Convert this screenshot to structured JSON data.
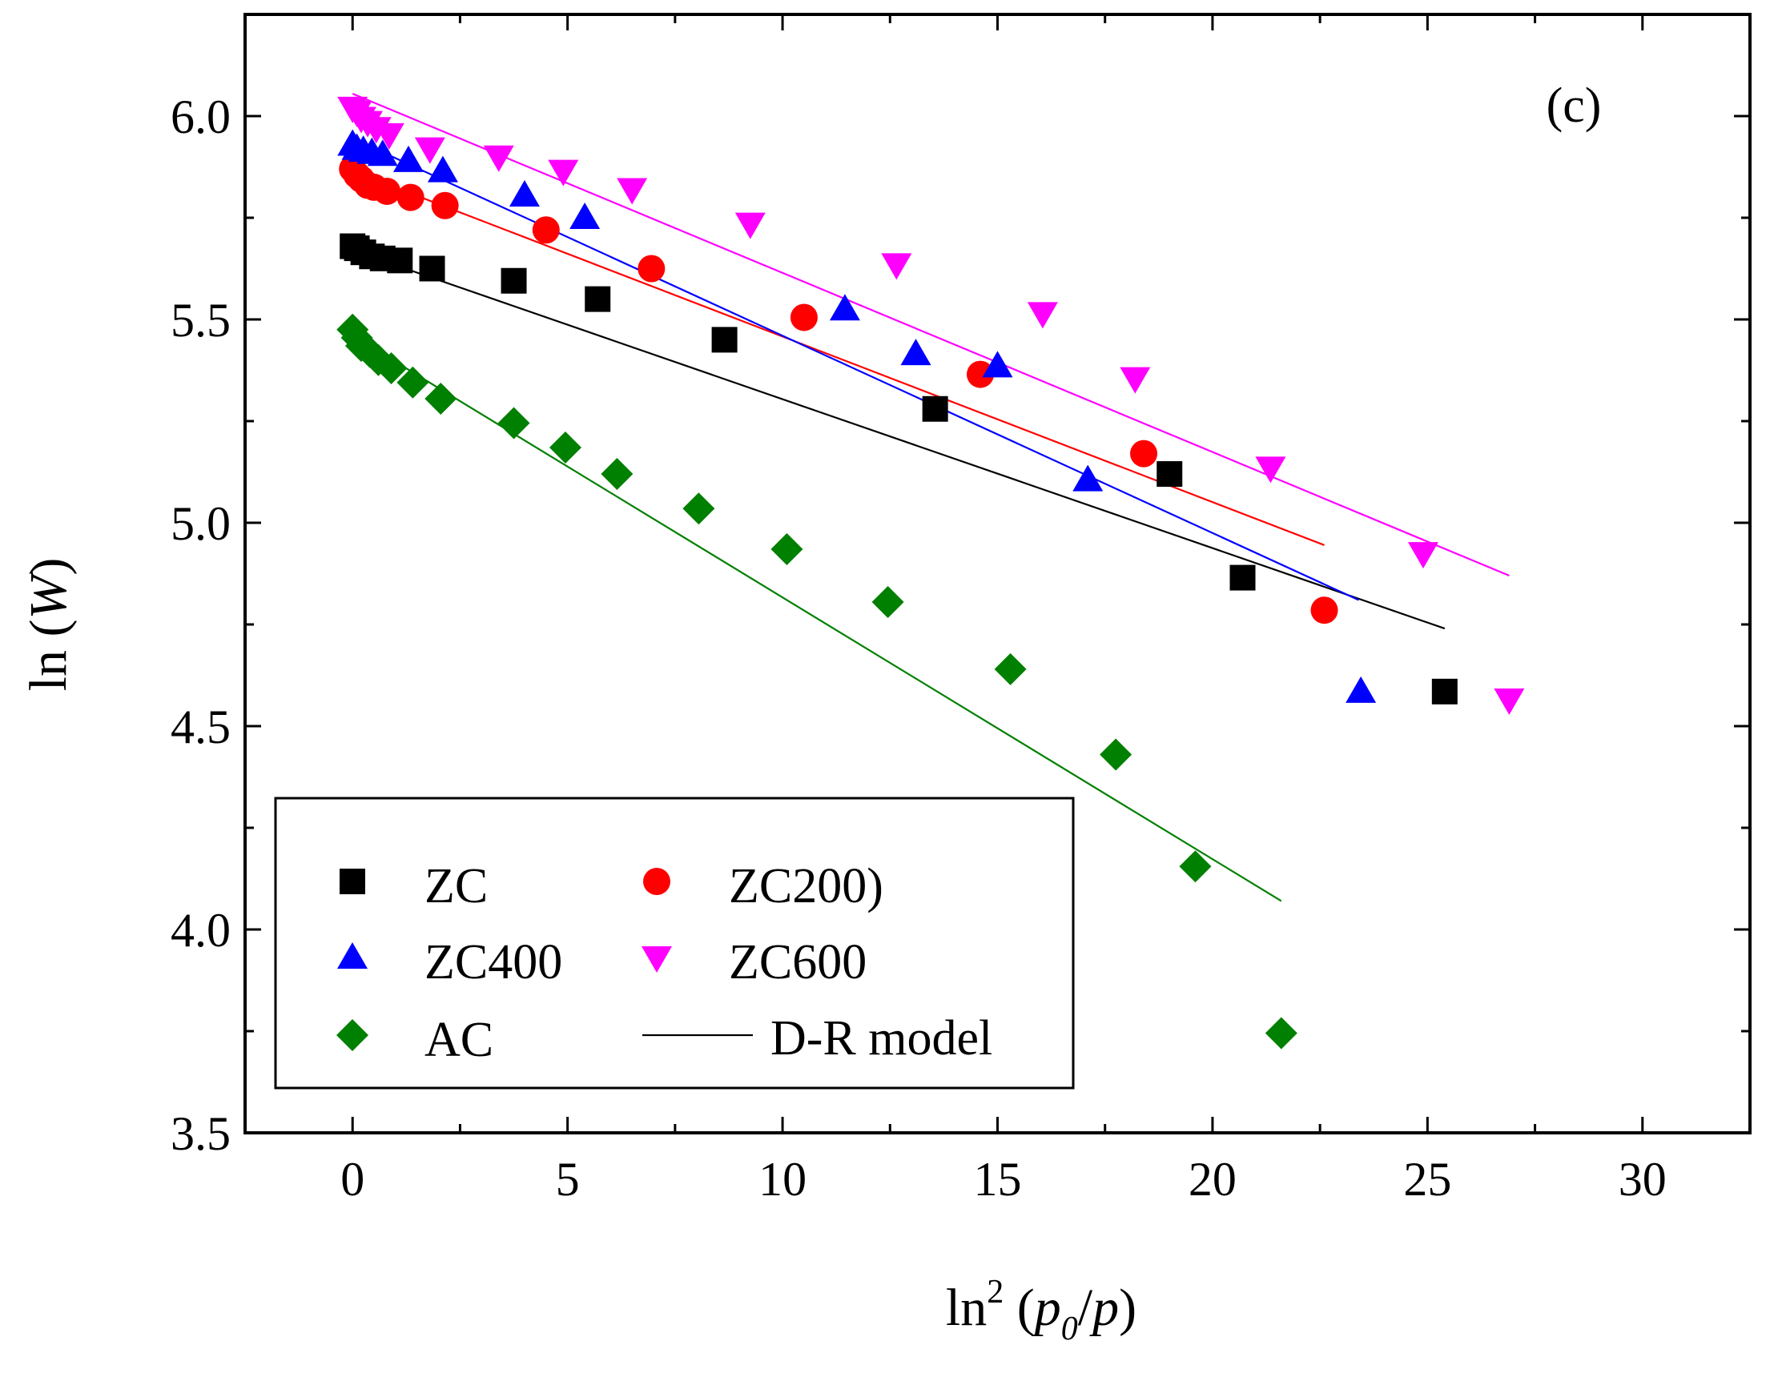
{
  "chart_data": {
    "type": "scatter",
    "panel_label": "(c)",
    "xlabel": {
      "prefix": "ln",
      "sup": "2",
      "open": " (",
      "p": "p",
      "sub": "0",
      "slash": "/",
      "p2": "p",
      "close": ")"
    },
    "ylabel": {
      "prefix": "ln (",
      "italic": "W",
      "suffix": ")"
    },
    "xlim": [
      -2.5,
      32.5
    ],
    "ylim": [
      3.5,
      6.25
    ],
    "xticks": [
      0,
      5,
      10,
      15,
      20,
      25,
      30
    ],
    "xtick_labels": [
      "0",
      "5",
      "10",
      "15",
      "20",
      "25",
      "30"
    ],
    "yticks": [
      3.5,
      4.0,
      4.5,
      5.0,
      5.5,
      6.0
    ],
    "ytick_labels": [
      "3.5",
      "4.0",
      "4.5",
      "5.0",
      "5.5",
      "6.0"
    ],
    "series": [
      {
        "name": "ZC",
        "marker": "square",
        "color": "#000000",
        "x": [
          0.0,
          0.1,
          0.25,
          0.45,
          0.7,
          1.1,
          1.85,
          3.75,
          5.7,
          8.65,
          13.55,
          19.0,
          20.7,
          25.4
        ],
        "y": [
          5.68,
          5.675,
          5.665,
          5.655,
          5.65,
          5.645,
          5.625,
          5.595,
          5.55,
          5.45,
          5.28,
          5.12,
          4.865,
          4.585
        ],
        "fit": {
          "x": [
            0.0,
            25.4
          ],
          "y": [
            5.67,
            4.74
          ]
        }
      },
      {
        "name": "ZC200)",
        "marker": "circle",
        "color": "#ff0000",
        "x": [
          0.0,
          0.1,
          0.2,
          0.35,
          0.5,
          0.8,
          1.35,
          2.15,
          4.5,
          6.95,
          10.5,
          14.6,
          18.4,
          22.6
        ],
        "y": [
          5.87,
          5.855,
          5.845,
          5.83,
          5.825,
          5.815,
          5.8,
          5.78,
          5.72,
          5.625,
          5.505,
          5.365,
          5.17,
          4.785
        ],
        "fit": {
          "x": [
            0.0,
            22.6
          ],
          "y": [
            5.865,
            4.945
          ]
        }
      },
      {
        "name": "ZC400",
        "marker": "triangle-up",
        "color": "#0000ff",
        "x": [
          0.0,
          0.1,
          0.25,
          0.45,
          0.7,
          1.3,
          2.1,
          4.0,
          5.4,
          11.45,
          13.1,
          15.0,
          17.1,
          23.45
        ],
        "y": [
          5.93,
          5.92,
          5.915,
          5.91,
          5.905,
          5.89,
          5.865,
          5.805,
          5.75,
          5.525,
          5.415,
          5.385,
          5.105,
          4.585
        ],
        "fit": {
          "x": [
            0.0,
            23.4
          ],
          "y": [
            5.945,
            4.81
          ]
        }
      },
      {
        "name": "ZC600",
        "marker": "triangle-down",
        "color": "#ff00ff",
        "x": [
          0.0,
          0.1,
          0.2,
          0.35,
          0.55,
          0.85,
          1.8,
          3.4,
          4.9,
          6.5,
          9.25,
          12.65,
          16.05,
          18.2,
          21.35,
          24.9,
          26.9
        ],
        "y": [
          6.02,
          6.01,
          5.995,
          5.985,
          5.97,
          5.955,
          5.92,
          5.9,
          5.865,
          5.82,
          5.735,
          5.635,
          5.515,
          5.355,
          5.135,
          4.925,
          4.565
        ],
        "fit": {
          "x": [
            0.0,
            26.9
          ],
          "y": [
            6.055,
            4.87
          ]
        }
      },
      {
        "name": "AC",
        "marker": "diamond",
        "color": "#008000",
        "x": [
          0.0,
          0.1,
          0.2,
          0.4,
          0.6,
          0.9,
          1.4,
          2.05,
          3.75,
          4.95,
          6.15,
          8.05,
          10.1,
          12.45,
          15.3,
          17.75,
          19.6,
          21.6
        ],
        "y": [
          5.475,
          5.455,
          5.435,
          5.42,
          5.4,
          5.38,
          5.345,
          5.305,
          5.245,
          5.185,
          5.12,
          5.035,
          4.935,
          4.805,
          4.64,
          4.43,
          4.155,
          3.745
        ],
        "fit": {
          "x": [
            0.0,
            21.6
          ],
          "y": [
            5.46,
            4.07
          ]
        }
      }
    ],
    "legend": {
      "position": "bottom-left",
      "entries": [
        "ZC",
        "ZC200)",
        "ZC400",
        "ZC600",
        "AC",
        "D-R model"
      ],
      "model_label": "D-R model"
    }
  }
}
